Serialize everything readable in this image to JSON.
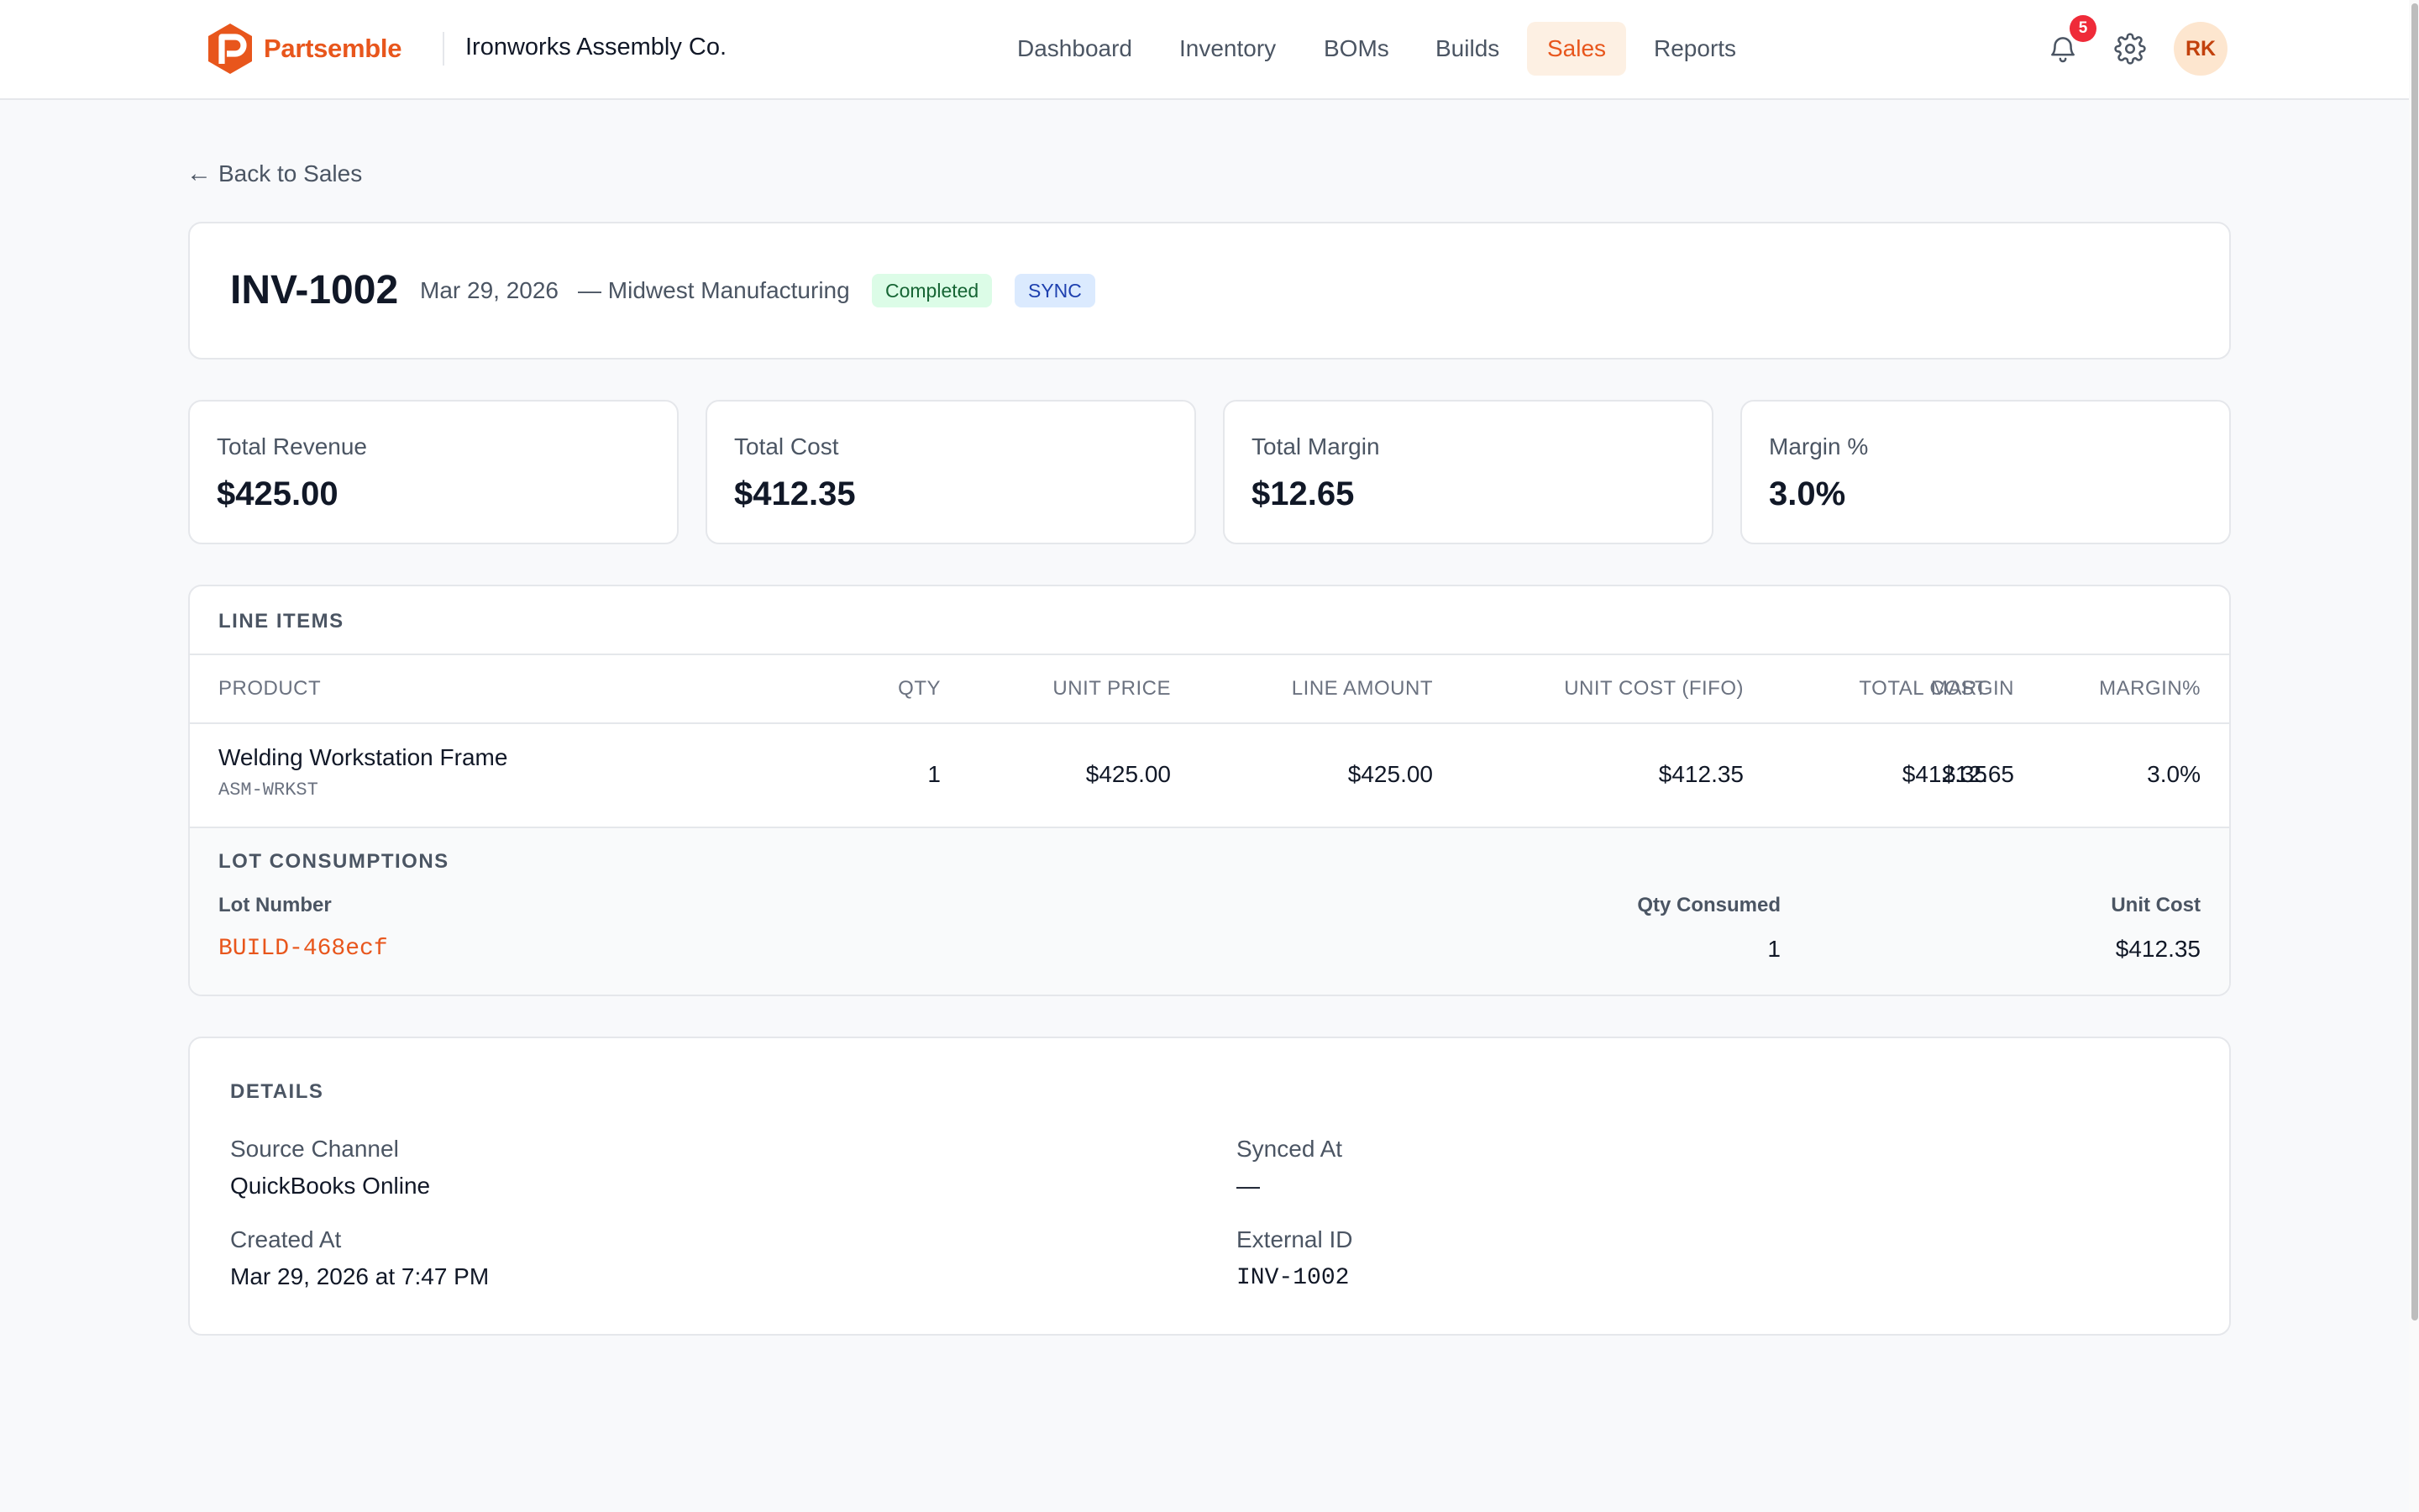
{
  "brand": {
    "name": "Partsemble",
    "accent": "#e8561c"
  },
  "org": {
    "name": "Ironworks Assembly Co."
  },
  "nav": {
    "items": [
      {
        "label": "Dashboard"
      },
      {
        "label": "Inventory"
      },
      {
        "label": "BOMs"
      },
      {
        "label": "Builds"
      },
      {
        "label": "Sales",
        "active": true
      },
      {
        "label": "Reports"
      }
    ]
  },
  "notifications": {
    "count": "5",
    "icon": "bell-icon"
  },
  "settings": {
    "icon": "gear-icon"
  },
  "user": {
    "initials": "RK"
  },
  "back": {
    "arrow": "←",
    "label": "Back to Sales"
  },
  "invoice": {
    "id": "INV-1002",
    "date": "Mar 29, 2026",
    "customer": "— Midwest Manufacturing",
    "status": "Completed",
    "source_badge": "SYNC"
  },
  "stats": [
    {
      "label": "Total Revenue",
      "value": "$425.00"
    },
    {
      "label": "Total Cost",
      "value": "$412.35"
    },
    {
      "label": "Total Margin",
      "value": "$12.65"
    },
    {
      "label": "Margin %",
      "value": "3.0%"
    }
  ],
  "line_items": {
    "title": "LINE ITEMS",
    "columns": [
      "PRODUCT",
      "QTY",
      "UNIT PRICE",
      "LINE AMOUNT",
      "UNIT COST (FIFO)",
      "TOTAL COST",
      "MARGIN",
      "MARGIN%"
    ],
    "rows": [
      {
        "product": "Welding Workstation Frame",
        "sku": "ASM-WRKST",
        "qty": "1",
        "unit_price": "$425.00",
        "line_amount": "$425.00",
        "unit_cost": "$412.35",
        "total_cost": "$412.35",
        "margin": "$12.65",
        "margin_pct": "3.0%"
      }
    ],
    "lots": {
      "title": "LOT CONSUMPTIONS",
      "columns": [
        "Lot Number",
        "Qty Consumed",
        "Unit Cost"
      ],
      "rows": [
        {
          "lot": "BUILD-468ecf",
          "qty": "1",
          "unit_cost": "$412.35"
        }
      ]
    }
  },
  "details": {
    "title": "DETAILS",
    "source_channel_label": "Source Channel",
    "source_channel": "QuickBooks Online",
    "synced_at_label": "Synced At",
    "synced_at": "—",
    "created_at_label": "Created At",
    "created_at": "Mar 29, 2026 at 7:47 PM",
    "external_id_label": "External ID",
    "external_id": "INV-1002"
  },
  "colors": {
    "accent": "#e8561c",
    "completed_bg": "#dcfce7",
    "completed_fg": "#166534",
    "sync_bg": "#dbeafe",
    "sync_fg": "#1e40af",
    "badge_red": "#ef2b39"
  }
}
